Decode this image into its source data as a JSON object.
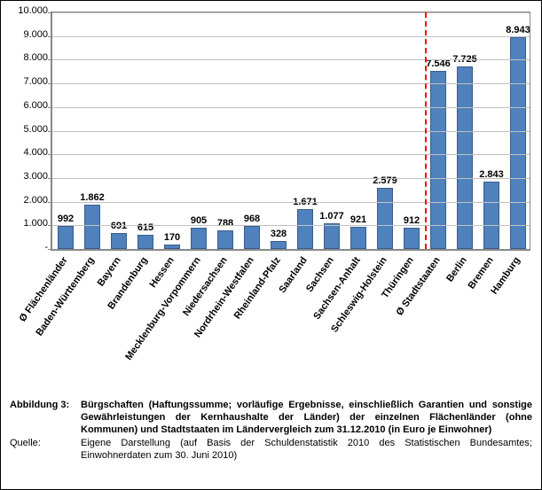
{
  "chart": {
    "type": "bar",
    "y_axis": {
      "min": 0,
      "max": 10000,
      "tick_step": 1000,
      "tick_labels": [
        "-",
        "1.000",
        "2.000",
        "3.000",
        "4.000",
        "5.000",
        "6.000",
        "7.000",
        "8.000",
        "9.000",
        "10.000"
      ]
    },
    "bar_color": "#4f81bd",
    "bar_border_color": "#385d8a",
    "grid_color": "#c0c0c0",
    "axis_color": "#888888",
    "background_color": "#ffffff",
    "label_color": "#000000",
    "label_fontsize": 11,
    "label_fontweight": "bold",
    "divider": {
      "after_index": 13,
      "color": "#ff0000",
      "dash": true
    },
    "bars": [
      {
        "category": "Ø Flächenländer",
        "value": 992,
        "label": "992"
      },
      {
        "category": "Baden-Württemberg",
        "value": 1862,
        "label": "1.862"
      },
      {
        "category": "Bayern",
        "value": 691,
        "label": "691"
      },
      {
        "category": "Brandenburg",
        "value": 615,
        "label": "615"
      },
      {
        "category": "Hessen",
        "value": 170,
        "label": "170"
      },
      {
        "category": "Mecklenburg-Vorpommern",
        "value": 905,
        "label": "905"
      },
      {
        "category": "Niedersachsen",
        "value": 788,
        "label": "788"
      },
      {
        "category": "Nordrhein-Westfalen",
        "value": 968,
        "label": "968"
      },
      {
        "category": "Rheinland-Pfalz",
        "value": 328,
        "label": "328"
      },
      {
        "category": "Saarland",
        "value": 1671,
        "label": "1.671"
      },
      {
        "category": "Sachsen",
        "value": 1077,
        "label": "1.077"
      },
      {
        "category": "Sachsen-Anhalt",
        "value": 921,
        "label": "921"
      },
      {
        "category": "Schleswig-Holstein",
        "value": 2579,
        "label": "2.579"
      },
      {
        "category": "Thüringen",
        "value": 912,
        "label": "912"
      },
      {
        "category": "Ø Stadtstaaten",
        "value": 7546,
        "label": "7.546"
      },
      {
        "category": "Berlin",
        "value": 7725,
        "label": "7.725"
      },
      {
        "category": "Bremen",
        "value": 2843,
        "label": "2.843"
      },
      {
        "category": "Hamburg",
        "value": 8943,
        "label": "8.943"
      }
    ]
  },
  "caption": {
    "figure_label": "Abbildung 3:",
    "figure_text": "Bürgschaften (Haftungssumme; vorläufige Ergebnisse, einschließlich Garantien und sonstige Gewährleistungen der Kernhaushalte der Länder) der einzelnen Flächenländer (ohne Kommunen) und Stadtstaaten im Ländervergleich zum 31.12.2010 (in Euro je Einwohner)",
    "source_label": "Quelle:",
    "source_text": "Eigene Darstellung (auf Basis der Schuldenstatistik 2010 des Statistischen Bundesamtes; Einwohnerdaten zum 30. Juni 2010)"
  }
}
